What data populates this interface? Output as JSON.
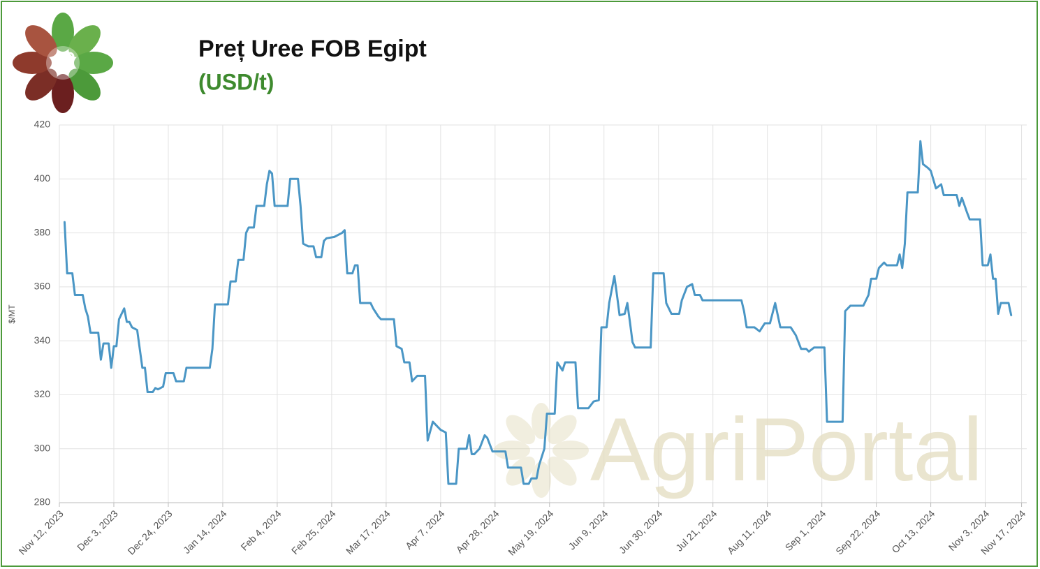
{
  "chart_data": {
    "type": "line",
    "title": "Preț Uree FOB Egipt",
    "subtitle": "(USD/t)",
    "y_label": "$/MT",
    "watermark": "AgriPortal",
    "grid": true,
    "xlim": [
      "2023-11-12",
      "2024-11-19"
    ],
    "xticks": [
      {
        "value": "2023-11-12",
        "label": "Nov 12, 2023"
      },
      {
        "value": "2023-12-03",
        "label": "Dec 3, 2023"
      },
      {
        "value": "2023-12-24",
        "label": "Dec 24, 2023"
      },
      {
        "value": "2024-01-14",
        "label": "Jan 14, 2024"
      },
      {
        "value": "2024-02-04",
        "label": "Feb 4, 2024"
      },
      {
        "value": "2024-02-25",
        "label": "Feb 25, 2024"
      },
      {
        "value": "2024-03-17",
        "label": "Mar 17, 2024"
      },
      {
        "value": "2024-04-07",
        "label": "Apr 7, 2024"
      },
      {
        "value": "2024-04-28",
        "label": "Apr 28, 2024"
      },
      {
        "value": "2024-05-19",
        "label": "May 19, 2024"
      },
      {
        "value": "2024-06-09",
        "label": "Jun 9, 2024"
      },
      {
        "value": "2024-06-30",
        "label": "Jun 30, 2024"
      },
      {
        "value": "2024-07-21",
        "label": "Jul 21, 2024"
      },
      {
        "value": "2024-08-11",
        "label": "Aug 11, 2024"
      },
      {
        "value": "2024-09-01",
        "label": "Sep 1, 2024"
      },
      {
        "value": "2024-09-22",
        "label": "Sep 22, 2024"
      },
      {
        "value": "2024-10-13",
        "label": "Oct 13, 2024"
      },
      {
        "value": "2024-11-03",
        "label": "Nov 3, 2024"
      },
      {
        "value": "2024-11-17",
        "label": "Nov 17, 2024"
      }
    ],
    "ylim": [
      280,
      420
    ],
    "yticks": [
      280,
      300,
      320,
      340,
      360,
      380,
      400,
      420
    ],
    "x": [
      "2023-11-14",
      "2023-11-15",
      "2023-11-17",
      "2023-11-18",
      "2023-11-21",
      "2023-11-22",
      "2023-11-23",
      "2023-11-24",
      "2023-11-27",
      "2023-11-28",
      "2023-11-29",
      "2023-12-01",
      "2023-12-02",
      "2023-12-03",
      "2023-12-04",
      "2023-12-05",
      "2023-12-07",
      "2023-12-08",
      "2023-12-09",
      "2023-12-10",
      "2023-12-12",
      "2023-12-13",
      "2023-12-14",
      "2023-12-15",
      "2023-12-16",
      "2023-12-18",
      "2023-12-19",
      "2023-12-20",
      "2023-12-22",
      "2023-12-23",
      "2023-12-26",
      "2023-12-27",
      "2023-12-30",
      "2023-12-31",
      "2024-01-09",
      "2024-01-10",
      "2024-01-11",
      "2024-01-16",
      "2024-01-17",
      "2024-01-19",
      "2024-01-20",
      "2024-01-22",
      "2024-01-23",
      "2024-01-24",
      "2024-01-26",
      "2024-01-27",
      "2024-01-30",
      "2024-01-31",
      "2024-02-01",
      "2024-02-02",
      "2024-02-03",
      "2024-02-08",
      "2024-02-09",
      "2024-02-12",
      "2024-02-13",
      "2024-02-14",
      "2024-02-16",
      "2024-02-18",
      "2024-02-19",
      "2024-02-21",
      "2024-02-22",
      "2024-02-23",
      "2024-02-26",
      "2024-02-29",
      "2024-03-01",
      "2024-03-02",
      "2024-03-04",
      "2024-03-05",
      "2024-03-06",
      "2024-03-07",
      "2024-03-11",
      "2024-03-12",
      "2024-03-14",
      "2024-03-15",
      "2024-03-20",
      "2024-03-21",
      "2024-03-23",
      "2024-03-24",
      "2024-03-26",
      "2024-03-27",
      "2024-03-29",
      "2024-04-01",
      "2024-04-02",
      "2024-04-04",
      "2024-04-05",
      "2024-04-07",
      "2024-04-09",
      "2024-04-10",
      "2024-04-13",
      "2024-04-14",
      "2024-04-17",
      "2024-04-18",
      "2024-04-19",
      "2024-04-20",
      "2024-04-22",
      "2024-04-24",
      "2024-04-25",
      "2024-04-27",
      "2024-05-02",
      "2024-05-03",
      "2024-05-08",
      "2024-05-09",
      "2024-05-11",
      "2024-05-12",
      "2024-05-14",
      "2024-05-15",
      "2024-05-17",
      "2024-05-18",
      "2024-05-21",
      "2024-05-22",
      "2024-05-24",
      "2024-05-25",
      "2024-05-29",
      "2024-05-30",
      "2024-06-03",
      "2024-06-05",
      "2024-06-07",
      "2024-06-08",
      "2024-06-10",
      "2024-06-11",
      "2024-06-13",
      "2024-06-14",
      "2024-06-15",
      "2024-06-17",
      "2024-06-18",
      "2024-06-19",
      "2024-06-20",
      "2024-06-21",
      "2024-06-27",
      "2024-06-28",
      "2024-07-02",
      "2024-07-03",
      "2024-07-05",
      "2024-07-08",
      "2024-07-09",
      "2024-07-11",
      "2024-07-13",
      "2024-07-14",
      "2024-07-16",
      "2024-07-17",
      "2024-08-01",
      "2024-08-02",
      "2024-08-03",
      "2024-08-06",
      "2024-08-08",
      "2024-08-10",
      "2024-08-12",
      "2024-08-14",
      "2024-08-16",
      "2024-08-20",
      "2024-08-22",
      "2024-08-24",
      "2024-08-26",
      "2024-08-27",
      "2024-08-29",
      "2024-09-02",
      "2024-09-03",
      "2024-09-09",
      "2024-09-10",
      "2024-09-12",
      "2024-09-17",
      "2024-09-19",
      "2024-09-20",
      "2024-09-22",
      "2024-09-23",
      "2024-09-25",
      "2024-09-26",
      "2024-09-30",
      "2024-10-01",
      "2024-10-02",
      "2024-10-03",
      "2024-10-04",
      "2024-10-08",
      "2024-10-09",
      "2024-10-10",
      "2024-10-12",
      "2024-10-13",
      "2024-10-15",
      "2024-10-17",
      "2024-10-18",
      "2024-10-23",
      "2024-10-24",
      "2024-10-25",
      "2024-10-27",
      "2024-10-28",
      "2024-11-01",
      "2024-11-02",
      "2024-11-04",
      "2024-11-05",
      "2024-11-06",
      "2024-11-07",
      "2024-11-08",
      "2024-11-09",
      "2024-11-12",
      "2024-11-13"
    ],
    "series": [
      {
        "color": "#4a96c5",
        "values": [
          384,
          365,
          365,
          357,
          357,
          352,
          349,
          343,
          343,
          333,
          339,
          339,
          330,
          338,
          338,
          348,
          352,
          347,
          347,
          345,
          344,
          337,
          330,
          330,
          321,
          321,
          322.5,
          322,
          323,
          328,
          328,
          325,
          325,
          330,
          330,
          337,
          353.5,
          353.5,
          362,
          362,
          370,
          370,
          380,
          382,
          382,
          390,
          390,
          398,
          403,
          402,
          390,
          390,
          400,
          400,
          390,
          376,
          375,
          375,
          371,
          371,
          377,
          378,
          378.5,
          380,
          381,
          365,
          365,
          368,
          368,
          354,
          354,
          352,
          349,
          348,
          348,
          338,
          337,
          332,
          332,
          325,
          327,
          327,
          303,
          310,
          309,
          307,
          306,
          287,
          287,
          300,
          300,
          305,
          298,
          298,
          300,
          305,
          304,
          299,
          299,
          293,
          293,
          287,
          287,
          289,
          289,
          294,
          300,
          313,
          313,
          332,
          329,
          332,
          332,
          315,
          315,
          317.5,
          318,
          345,
          345,
          354,
          364,
          357,
          349.5,
          350,
          354,
          347,
          339.5,
          337.5,
          337.5,
          365,
          365,
          354,
          350,
          350,
          355,
          360,
          361,
          357,
          357,
          355,
          355,
          351,
          345,
          345,
          343.5,
          346.5,
          346.5,
          354,
          345,
          345,
          342,
          337,
          337,
          336,
          337.5,
          337.5,
          310,
          310,
          351,
          353,
          353,
          357,
          363,
          363,
          367,
          369,
          368,
          368,
          372,
          367,
          376,
          395,
          395,
          414,
          405.5,
          404,
          403,
          396.5,
          398,
          394,
          394,
          390,
          393,
          387.5,
          385,
          385,
          368,
          368,
          372,
          363,
          363,
          350,
          354,
          354,
          349.5
        ]
      }
    ]
  }
}
